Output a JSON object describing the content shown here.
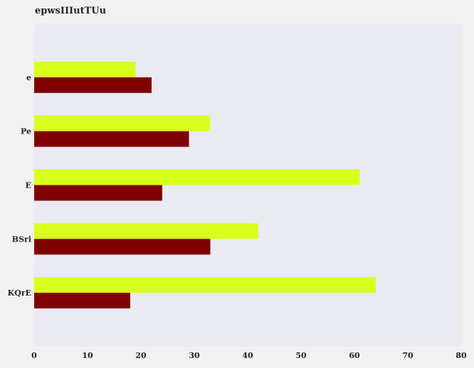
{
  "chart_data": {
    "type": "bar",
    "orientation": "horizontal",
    "title": "epwsIIIutTUu",
    "categories": [
      "KQrE",
      "BSri",
      "E",
      "Pe",
      "e"
    ],
    "series": [
      {
        "color": "#d8ff1e",
        "values": [
          64,
          42,
          61,
          33,
          19
        ]
      },
      {
        "color": "#800000",
        "values": [
          18,
          33,
          24,
          29,
          22
        ]
      }
    ],
    "xlim": [
      0,
      80
    ],
    "xticks": [
      0,
      10,
      20,
      30,
      40,
      50,
      60,
      70,
      80
    ],
    "grid": false,
    "legend": "none",
    "plot_background": "#eaeaf2"
  }
}
